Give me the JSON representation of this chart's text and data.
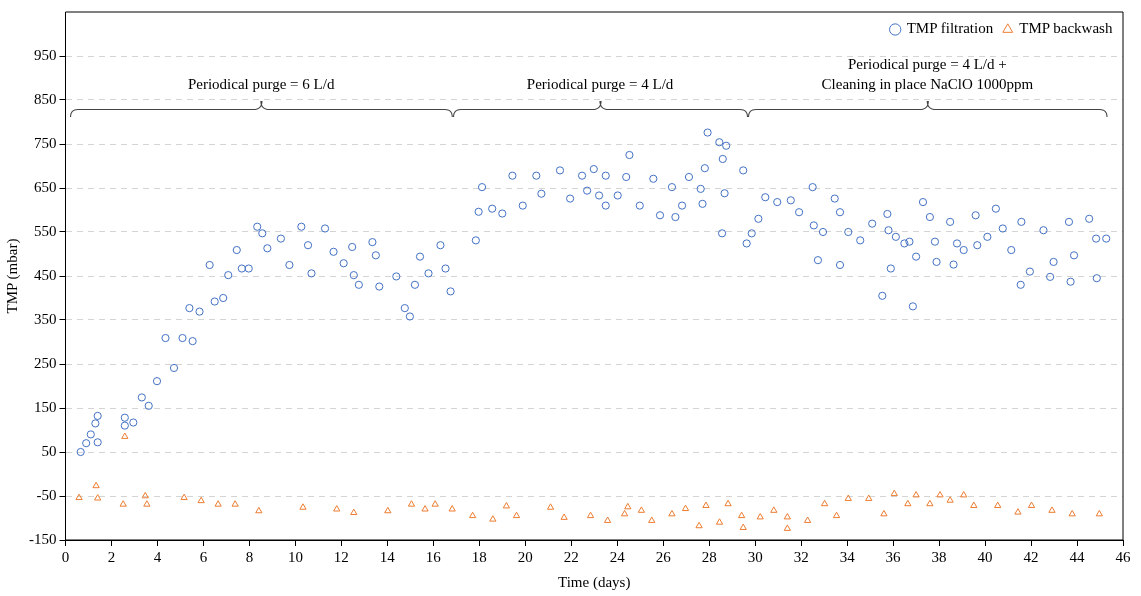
{
  "chart_data": {
    "type": "scatter",
    "xlabel": "Time (days)",
    "ylabel": "TMP (mbar)",
    "xlim": [
      0,
      46
    ],
    "xticks": [
      0,
      2,
      4,
      6,
      8,
      10,
      12,
      14,
      16,
      18,
      20,
      22,
      24,
      26,
      28,
      30,
      32,
      34,
      36,
      38,
      40,
      42,
      44,
      46
    ],
    "ylim": [
      -150,
      1050
    ],
    "yticks": [
      -150,
      -50,
      50,
      150,
      250,
      350,
      450,
      550,
      650,
      750,
      850,
      950
    ],
    "grid": "y",
    "legend": "top right",
    "annotations": [
      "Periodical purge = 6 L/d",
      "Periodical purge = 4 L/d",
      "Periodical purge = 4 L/d +\nCleaning in place NaClO 1000ppm"
    ],
    "series": [
      {
        "name": "TMP filtration",
        "color": "#4472c4",
        "marker": "circle",
        "x": [
          0.66,
          0.9,
          1.1,
          1.3,
          1.4,
          1.4,
          2.58,
          2.58,
          2.95,
          3.32,
          3.62,
          3.98,
          4.35,
          4.72,
          5.09,
          5.39,
          5.53,
          5.83,
          6.27,
          6.49,
          6.86,
          7.08,
          7.45,
          7.67,
          7.97,
          8.34,
          8.56,
          8.78,
          9.37,
          9.74,
          10.26,
          10.55,
          10.7,
          11.29,
          11.66,
          12.1,
          12.47,
          12.54,
          12.76,
          13.35,
          13.5,
          13.65,
          14.39,
          14.76,
          14.98,
          15.2,
          15.42,
          15.79,
          16.31,
          16.53,
          16.75,
          17.85,
          17.97,
          18.12,
          18.56,
          19.0,
          19.44,
          19.89,
          20.48,
          20.7,
          21.51,
          21.95,
          22.47,
          22.69,
          22.98,
          23.21,
          23.5,
          23.5,
          24.02,
          24.39,
          24.53,
          24.98,
          25.57,
          25.86,
          26.38,
          26.53,
          26.82,
          27.12,
          27.63,
          27.71,
          27.81,
          27.93,
          28.44,
          28.56,
          28.59,
          28.67,
          28.74,
          29.48,
          29.63,
          29.85,
          30.14,
          30.44,
          30.96,
          31.55,
          31.91,
          32.5,
          32.55,
          32.73,
          32.95,
          33.46,
          33.69,
          33.69,
          34.05,
          34.57,
          35.09,
          35.53,
          35.75,
          35.8,
          35.9,
          36.12,
          36.49,
          36.71,
          36.86,
          37.0,
          37.3,
          37.6,
          37.82,
          37.89,
          38.48,
          38.63,
          38.78,
          39.07,
          39.59,
          39.66,
          40.1,
          40.47,
          40.77,
          41.14,
          41.55,
          41.58,
          41.95,
          42.54,
          42.83,
          42.98,
          43.65,
          43.72,
          43.87,
          44.53,
          44.83,
          44.86,
          45.27
        ],
        "values": [
          50,
          70,
          90,
          115,
          132,
          72,
          128,
          110,
          117,
          174,
          155,
          211,
          309,
          241,
          309,
          377,
          302,
          369,
          475,
          392,
          400,
          452,
          509,
          467,
          467,
          562,
          547,
          513,
          535,
          475,
          562,
          520,
          456,
          558,
          505,
          479,
          516,
          452,
          430,
          527,
          497,
          426,
          449,
          377,
          358,
          430,
          494,
          456,
          520,
          467,
          415,
          531,
          596,
          652,
          603,
          592,
          678,
          610,
          678,
          637,
          690,
          626,
          678,
          644,
          693,
          633,
          678,
          610,
          633,
          675,
          725,
          610,
          671,
          588,
          652,
          584,
          610,
          675,
          648,
          614,
          695,
          776,
          754,
          547,
          716,
          638,
          746,
          690,
          524,
          547,
          580,
          629,
          618,
          622,
          595,
          652,
          565,
          486,
          550,
          626,
          595,
          475,
          550,
          531,
          569,
          405,
          591,
          554,
          467,
          539,
          524,
          528,
          381,
          494,
          618,
          584,
          528,
          482,
          573,
          476,
          524,
          509,
          588,
          520,
          539,
          603,
          558,
          509,
          430,
          573,
          460,
          554,
          448,
          482,
          573,
          437,
          497,
          580,
          535,
          445,
          535
        ]
      },
      {
        "name": "TMP backwash",
        "color": "#ed7d31",
        "marker": "triangle",
        "x": [
          0.59,
          1.33,
          1.4,
          2.51,
          2.58,
          3.47,
          3.54,
          5.16,
          5.9,
          6.64,
          7.38,
          8.41,
          10.33,
          11.8,
          12.54,
          14.02,
          15.05,
          15.64,
          16.08,
          16.82,
          17.71,
          18.59,
          19.18,
          19.62,
          21.1,
          21.69,
          22.84,
          23.58,
          24.32,
          24.46,
          25.05,
          25.5,
          26.38,
          26.97,
          27.56,
          27.86,
          28.45,
          28.82,
          29.41,
          29.48,
          30.22,
          30.81,
          31.4,
          31.4,
          32.28,
          33.02,
          33.54,
          34.05,
          34.94,
          35.6,
          36.05,
          36.64,
          37.0,
          37.6,
          38.04,
          38.48,
          39.07,
          39.51,
          40.55,
          41.43,
          42.02,
          42.91,
          43.79,
          44.97
        ],
        "values": [
          -54,
          -27,
          -55,
          -69,
          85,
          -50,
          -69,
          -54,
          -61,
          -69,
          -69,
          -84,
          -76,
          -80,
          -88,
          -84,
          -69,
          -80,
          -69,
          -80,
          -95,
          -103,
          -73,
          -95,
          -76,
          -99,
          -95,
          -106,
          -91,
          -75,
          -83,
          -106,
          -91,
          -79,
          -118,
          -72,
          -110,
          -68,
          -95,
          -122,
          -98,
          -83,
          -98,
          -124,
          -106,
          -68,
          -95,
          -56,
          -56,
          -91,
          -45,
          -68,
          -48,
          -68,
          -48,
          -60,
          -48,
          -72,
          -72,
          -87,
          -72,
          -83,
          -91,
          -91
        ]
      }
    ]
  }
}
